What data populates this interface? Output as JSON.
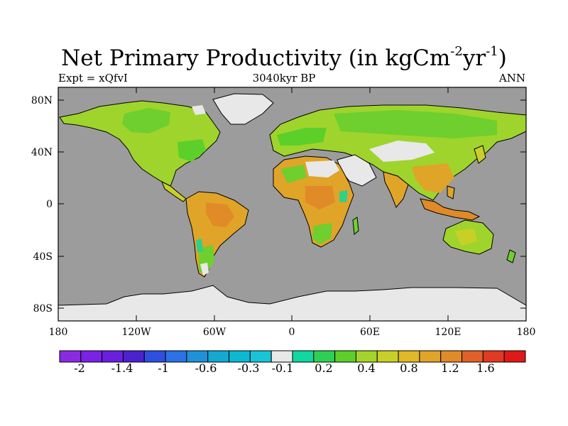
{
  "title": {
    "main": "Net Primary Productivity (in kgCm",
    "exp1": "-2",
    "mid": "yr",
    "exp2": "-1",
    "close": ")"
  },
  "subtitle_left": "Expt = xQfvI",
  "subtitle_center": "3040kyr BP",
  "subtitle_right": "ANN",
  "lat_labels": [
    "80N",
    "40N",
    "0",
    "40S",
    "80S"
  ],
  "lon_labels": [
    "180",
    "120W",
    "60W",
    "0",
    "60E",
    "120E",
    "180"
  ],
  "colorbar": {
    "labels": [
      "-2",
      "-1.4",
      "-1",
      "-0.6",
      "-0.3",
      "-0.1",
      "0.2",
      "0.4",
      "0.8",
      "1.2",
      "1.6"
    ],
    "colors": [
      "#8a2be2",
      "#7a22e6",
      "#6a1fe0",
      "#4a22d0",
      "#2f4fe0",
      "#2a72e6",
      "#1e92d8",
      "#14a8d2",
      "#0cb8d4",
      "#18c4d8",
      "#e8e8e8",
      "#10d8a0",
      "#2fcf55",
      "#5ccf2a",
      "#a4d42a",
      "#c8d028",
      "#e0b828",
      "#e0a428",
      "#e08a28",
      "#e06028",
      "#e03a22",
      "#e01818"
    ]
  },
  "colors": {
    "ocean": "#9c9c9c",
    "ice": "#e8e8e8",
    "land_green": "#6ecf2e",
    "land_lightgreen": "#9fd42c",
    "land_yellow": "#c8d028",
    "land_orange": "#e0a428",
    "land_darkorange": "#e08a28",
    "land_teal": "#2fd08a"
  }
}
